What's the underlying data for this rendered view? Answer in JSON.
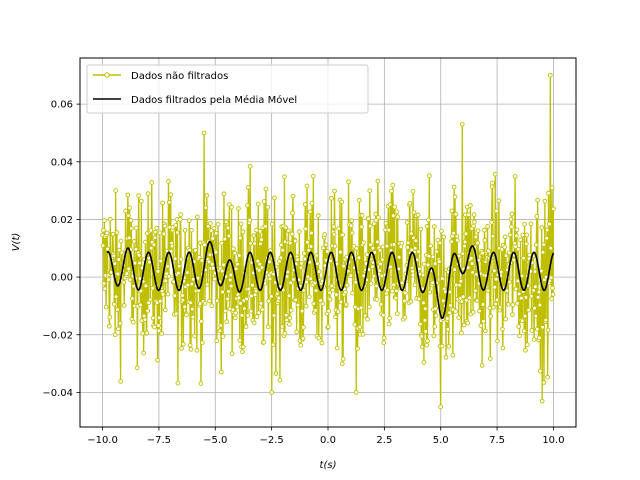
{
  "chart_data": {
    "type": "line",
    "xlabel": "t(s)",
    "ylabel": "V(t)",
    "xlim": [
      -11.0,
      11.0
    ],
    "ylim": [
      -0.052,
      0.076
    ],
    "grid": true,
    "legend_position": "top-left",
    "x_ticks": [
      -10.0,
      -7.5,
      -5.0,
      -2.5,
      0.0,
      2.5,
      5.0,
      7.5,
      10.0
    ],
    "x_tick_labels": [
      "−10.0",
      "−7.5",
      "−5.0",
      "−2.5",
      "0.0",
      "2.5",
      "5.0",
      "7.5",
      "10.0"
    ],
    "y_ticks": [
      -0.04,
      -0.02,
      0.0,
      0.02,
      0.04,
      0.06
    ],
    "y_tick_labels": [
      "−0.04",
      "−0.02",
      "0.00",
      "0.02",
      "0.04",
      "0.06"
    ],
    "series": [
      {
        "name": "Dados não filtrados",
        "color": "#bfbf00",
        "marker": "circle-open",
        "x_range": [
          -10.0,
          10.0
        ],
        "num_points": 1000,
        "approx_amplitude": 0.025,
        "notable_points": [
          {
            "x": 9.85,
            "y": 0.07
          },
          {
            "x": 5.95,
            "y": 0.053
          },
          {
            "x": -5.5,
            "y": 0.05
          },
          {
            "x": 5.0,
            "y": -0.045
          },
          {
            "x": 9.5,
            "y": -0.043
          },
          {
            "x": -2.5,
            "y": -0.04
          },
          {
            "x": 1.25,
            "y": -0.04
          }
        ]
      },
      {
        "name": "Dados filtrados pela Média Móvel",
        "color": "#000000",
        "x_range": [
          -9.8,
          10.0
        ],
        "baseline": 0.002,
        "oscillation_period": 0.9,
        "approx_amplitude": 0.012,
        "peaks": [
          {
            "x": -9.1,
            "y": 0.015
          },
          {
            "x": -5.0,
            "y": 0.018
          },
          {
            "x": 6.0,
            "y": 0.016
          }
        ],
        "troughs": [
          {
            "x": -4.5,
            "y": -0.006
          },
          {
            "x": 5.0,
            "y": -0.012
          }
        ]
      }
    ]
  }
}
